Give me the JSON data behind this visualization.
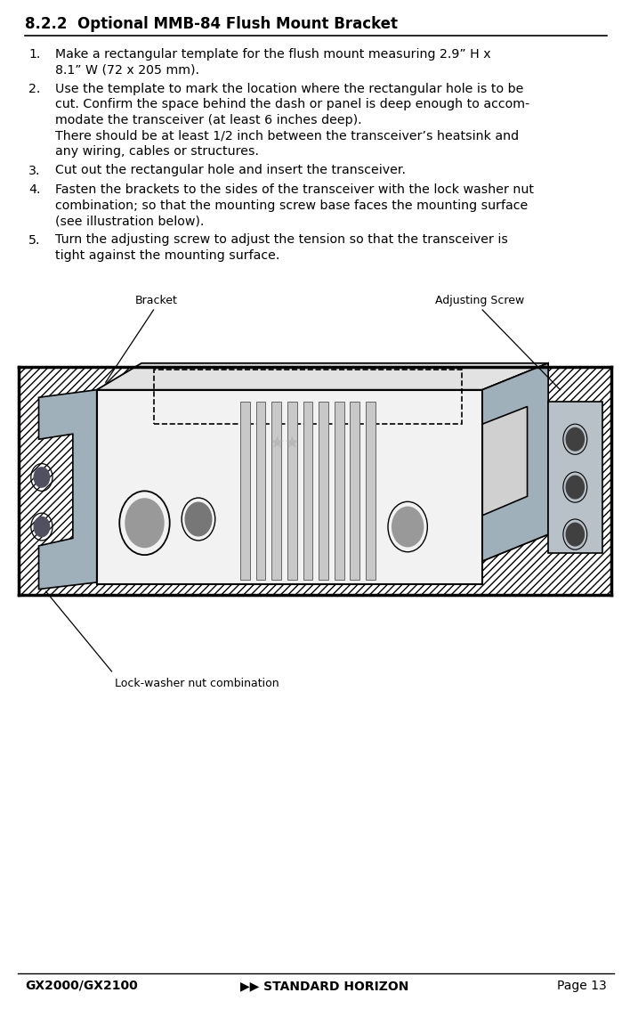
{
  "title": "8.2.2  Optional MMB-84 Flush Mount Bracket",
  "body_font_size": 10.2,
  "title_font_size": 12.0,
  "footer_left": "GX2000/GX2100",
  "footer_center": "STANDARD HORIZON",
  "footer_right": "Page 13",
  "footer_font_size": 10.0,
  "bg_color": "#ffffff",
  "text_color": "#000000",
  "label_bracket": "Bracket",
  "label_adjusting": "Adjusting Screw",
  "label_lockwasher": "Lock-washer nut combination",
  "items": [
    {
      "num": "1.",
      "lines": [
        "Make a rectangular template for the flush mount measuring 2.9” H x",
        "8.1” W (72 x 205 mm)."
      ]
    },
    {
      "num": "2.",
      "lines": [
        "Use the template to mark the location where the rectangular hole is to be",
        "cut. Confirm the space behind the dash or panel is deep enough to accom-",
        "modate the transceiver (at least 6 inches deep).",
        "There should be at least 1/2 inch between the transceiver’s heatsink and",
        "any wiring, cables or structures."
      ]
    },
    {
      "num": "3.",
      "lines": [
        "Cut out the rectangular hole and insert the transceiver."
      ]
    },
    {
      "num": "4.",
      "lines": [
        "Fasten the brackets to the sides of the transceiver with the lock washer nut",
        "combination; so that the mounting screw base faces the mounting surface",
        "(see illustration below)."
      ]
    },
    {
      "num": "5.",
      "lines": [
        "Turn the adjusting screw to adjust the tension so that the transceiver is",
        "tight against the mounting surface."
      ]
    }
  ]
}
